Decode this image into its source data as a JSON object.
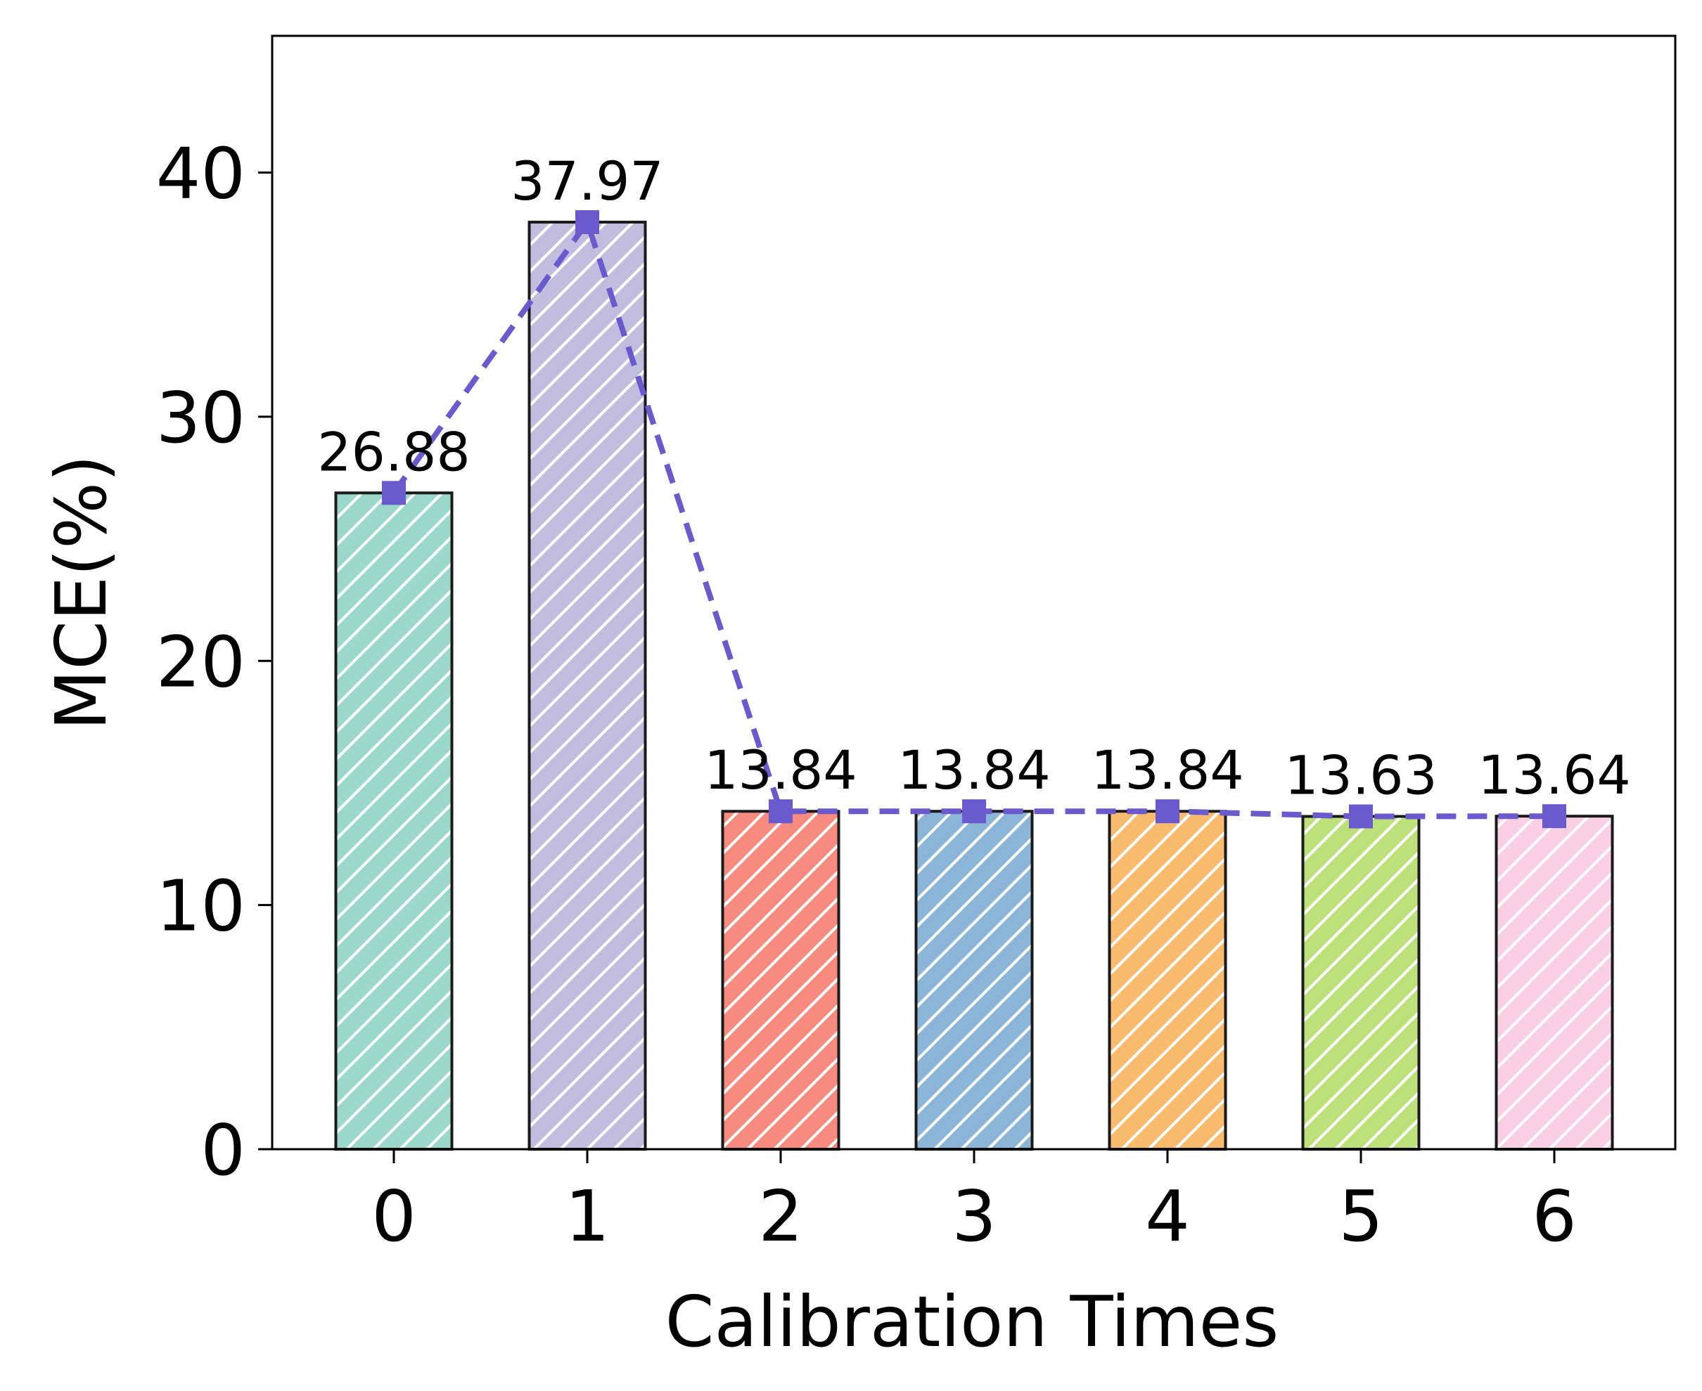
{
  "chart_data": {
    "type": "bar",
    "categories": [
      "0",
      "1",
      "2",
      "3",
      "4",
      "5",
      "6"
    ],
    "values": [
      26.88,
      37.97,
      13.84,
      13.84,
      13.84,
      13.63,
      13.64
    ],
    "value_labels": [
      "26.88",
      "37.97",
      "13.84",
      "13.84",
      "13.84",
      "13.63",
      "13.64"
    ],
    "bar_colors": [
      "#9ad9ca",
      "#c2bddf",
      "#f98a7e",
      "#8bb6d7",
      "#fbbb6f",
      "#bde07a",
      "#f9d0e3"
    ],
    "bar_hatch": "diagonal",
    "hatch_color": "#ffffff",
    "bar_edge_color": "#1a1a1a",
    "line_overlay": {
      "values": [
        26.88,
        37.97,
        13.84,
        13.84,
        13.84,
        13.63,
        13.64
      ],
      "color": "#6a5acd",
      "style": "dashed",
      "marker": "square"
    },
    "title": "",
    "xlabel": "Calibration Times",
    "ylabel": "MCE(%)",
    "ylim": [
      0,
      45.6
    ],
    "yticks": [
      0,
      10,
      20,
      30,
      40
    ],
    "ytick_labels": [
      "0",
      "10",
      "20",
      "30",
      "40"
    ],
    "grid": false,
    "legend": false
  }
}
